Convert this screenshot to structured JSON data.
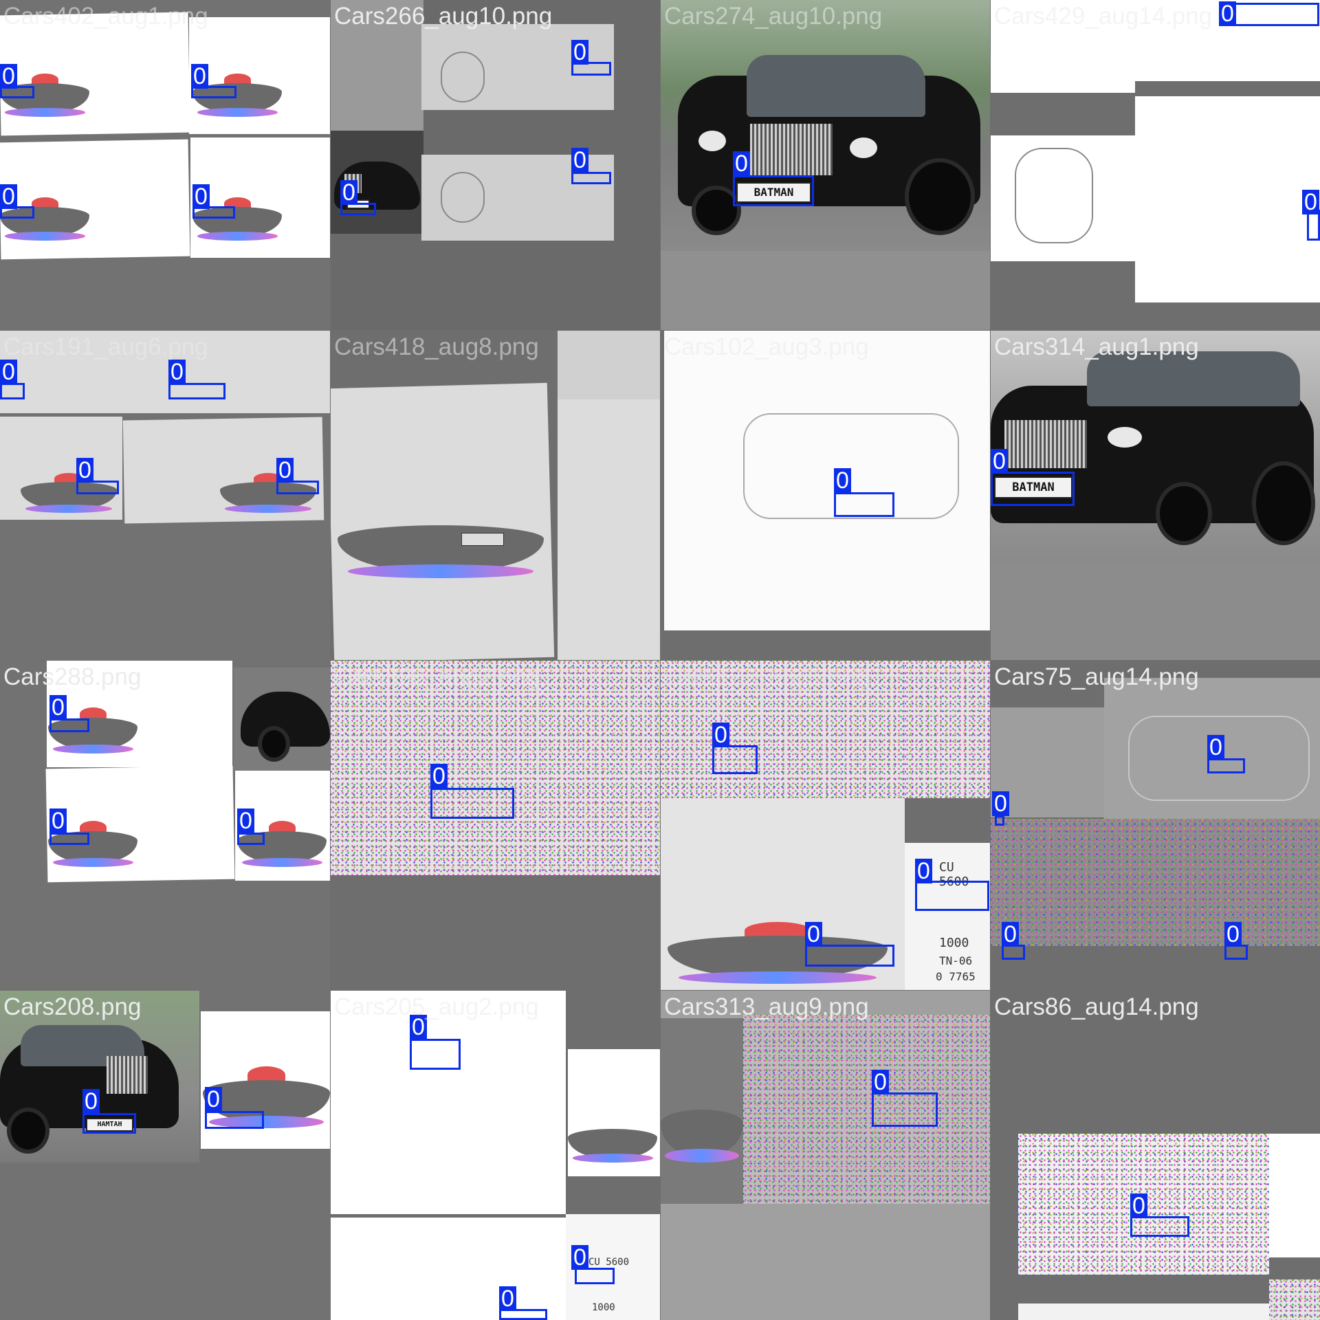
{
  "tiles": [
    {
      "caption": "Cars402_aug1.png",
      "boxes": [
        "0",
        "0",
        "0",
        "0"
      ]
    },
    {
      "caption": "Cars266_aug10.png",
      "boxes": [
        "0",
        "0",
        "0"
      ]
    },
    {
      "caption": "Cars274_aug10.png",
      "plate": "BATMAN",
      "boxes": [
        "0"
      ]
    },
    {
      "caption": "Cars429_aug14.png",
      "boxes": [
        "0",
        "0"
      ]
    },
    {
      "caption": "Cars191_aug6.png",
      "boxes": [
        "0",
        "0",
        "0",
        "0"
      ]
    },
    {
      "caption": "Cars418_aug8.png",
      "boxes": []
    },
    {
      "caption": "Cars102_aug3.png",
      "boxes": [
        "0"
      ]
    },
    {
      "caption": "Cars314_aug1.png",
      "plate": "BATMAN",
      "boxes": [
        "0"
      ]
    },
    {
      "caption": "Cars288.png",
      "boxes": [
        "0",
        "0",
        "0"
      ]
    },
    {
      "caption": "Cars398_aug2.png",
      "boxes": [
        "0"
      ]
    },
    {
      "caption": "Cars123_aug5.png",
      "plate_texts": [
        "CU 5600",
        "1000",
        "TN-06",
        "0 7765"
      ],
      "boxes": [
        "0",
        "0",
        "0"
      ]
    },
    {
      "caption": "Cars75_aug14.png",
      "boxes": [
        "0",
        "0",
        "0",
        "0"
      ]
    },
    {
      "caption": "Cars208.png",
      "plate": "HAMTAH",
      "boxes": [
        "0",
        "0"
      ]
    },
    {
      "caption": "Cars205_aug2.png",
      "plate_texts": [
        "CU 5600",
        "1000"
      ],
      "boxes": [
        "0",
        "0",
        "0"
      ]
    },
    {
      "caption": "Cars313_aug9.png",
      "boxes": [
        "0"
      ]
    },
    {
      "caption": "Cars86_aug14.png",
      "boxes": [
        "0"
      ]
    }
  ],
  "colors": {
    "box": "#0c2ee8",
    "pad": "#6e6e6e",
    "caption": "#ececec"
  }
}
